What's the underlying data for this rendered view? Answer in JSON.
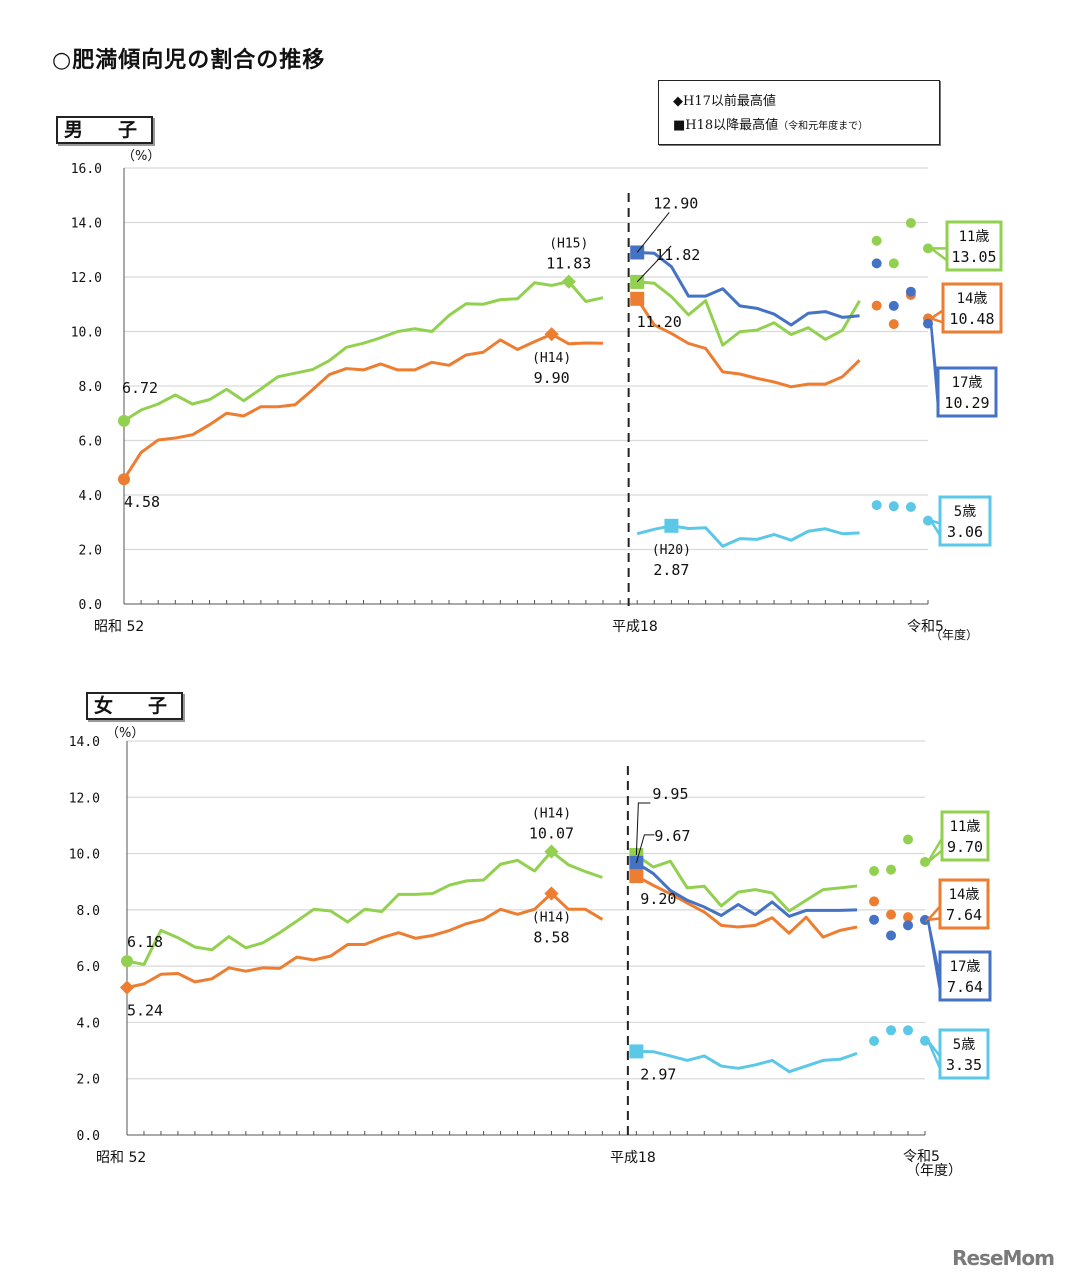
{
  "title": "○肥満傾向児の割合の推移",
  "legend": {
    "diamond": "◆H17以前最高値",
    "square": "■H18以降最高値",
    "square_note": "（令和元年度まで）"
  },
  "watermark": "ReseMom",
  "colors": {
    "11歳": "#92d050",
    "14歳": "#ed7d31",
    "17歳": "#4472c4",
    "5歳": "#5bc8e8"
  },
  "chart_data": [
    {
      "type": "line",
      "title": "男　子",
      "ylabel": "（%）",
      "xlabel": "（年度）",
      "ylim": [
        0,
        16
      ],
      "y_ticks": [
        "0.0",
        "2.0",
        "4.0",
        "6.0",
        "8.0",
        "10.0",
        "12.0",
        "14.0",
        "16.0"
      ],
      "x_range": [
        1977,
        2023
      ],
      "x_labels": [
        {
          "year": 1977,
          "label": "昭和 52"
        },
        {
          "year": 2006,
          "label": "平成18"
        },
        {
          "year": 2023,
          "label": "令和5"
        }
      ],
      "grid": true,
      "series": [
        {
          "name": "11歳",
          "color": "#92d050",
          "segments": [
            {
              "start": 1977,
              "values": [
                6.72,
                7.12,
                7.34,
                7.67,
                7.34,
                7.5,
                7.88,
                7.46,
                7.89,
                8.34,
                8.47,
                8.6,
                8.93,
                9.42,
                9.57,
                9.77,
                10.0,
                10.1,
                10.0,
                10.59,
                11.02,
                11.0,
                11.17,
                11.2,
                11.79,
                11.69,
                11.83,
                11.1,
                11.24
              ]
            },
            {
              "start": 2006,
              "values": [
                11.82,
                11.77,
                11.28,
                10.61,
                11.13,
                9.5,
                9.99,
                10.05,
                10.32,
                9.89,
                10.14,
                9.71,
                10.05,
                11.13
              ]
            }
          ],
          "points": [
            {
              "year": 2020,
              "value": 13.33
            },
            {
              "year": 2021,
              "value": 12.5
            },
            {
              "year": 2022,
              "value": 13.98
            },
            {
              "year": 2023,
              "value": 13.05
            }
          ]
        },
        {
          "name": "14歳",
          "color": "#ed7d31",
          "segments": [
            {
              "start": 1977,
              "values": [
                4.58,
                5.56,
                6.02,
                6.09,
                6.21,
                6.58,
                7.0,
                6.9,
                7.24,
                7.24,
                7.31,
                7.85,
                8.42,
                8.64,
                8.59,
                8.81,
                8.59,
                8.59,
                8.87,
                8.76,
                9.14,
                9.24,
                9.69,
                9.34,
                9.63,
                9.9,
                9.55,
                9.58,
                9.57
              ]
            },
            {
              "start": 2006,
              "values": [
                11.2,
                10.24,
                9.93,
                9.56,
                9.38,
                8.52,
                8.44,
                8.28,
                8.15,
                7.97,
                8.07,
                8.07,
                8.34,
                8.95
              ]
            }
          ],
          "points": [
            {
              "year": 2020,
              "value": 10.95
            },
            {
              "year": 2021,
              "value": 10.27
            },
            {
              "year": 2022,
              "value": 11.34
            },
            {
              "year": 2023,
              "value": 10.48
            }
          ]
        },
        {
          "name": "17歳",
          "color": "#4472c4",
          "segments": [
            {
              "start": 2006,
              "values": [
                12.9,
                12.87,
                12.38,
                11.3,
                11.3,
                11.57,
                10.94,
                10.85,
                10.64,
                10.24,
                10.67,
                10.73,
                10.52,
                10.58
              ]
            }
          ],
          "points": [
            {
              "year": 2020,
              "value": 12.5
            },
            {
              "year": 2021,
              "value": 10.94
            },
            {
              "year": 2022,
              "value": 11.46
            },
            {
              "year": 2023,
              "value": 10.29
            }
          ]
        },
        {
          "name": "5歳",
          "color": "#5bc8e8",
          "segments": [
            {
              "start": 2006,
              "values": [
                2.58,
                2.74,
                2.87,
                2.77,
                2.8,
                2.12,
                2.4,
                2.37,
                2.55,
                2.34,
                2.67,
                2.76,
                2.58,
                2.61
              ]
            }
          ],
          "points": [
            {
              "year": 2020,
              "value": 3.63
            },
            {
              "year": 2021,
              "value": 3.59
            },
            {
              "year": 2022,
              "value": 3.56
            },
            {
              "year": 2023,
              "value": 3.06
            }
          ]
        }
      ],
      "annotations": [
        {
          "series": "11歳",
          "year": 1977,
          "value": 6.72,
          "marker": "circle",
          "text": [
            "6.72"
          ],
          "pos": "above"
        },
        {
          "series": "14歳",
          "year": 1977,
          "value": 4.58,
          "marker": "circle",
          "text": [
            "4.58"
          ],
          "pos": "below"
        },
        {
          "series": "11歳",
          "year": 2003,
          "value": 11.83,
          "marker": "diamond",
          "text": [
            "(H15)",
            "11.83"
          ],
          "pos": "above"
        },
        {
          "series": "14歳",
          "year": 2002,
          "value": 9.9,
          "marker": "diamond",
          "text": [
            "(H14)",
            "9.90"
          ],
          "pos": "below"
        },
        {
          "series": "17歳",
          "year": 2006,
          "value": 12.9,
          "marker": "square",
          "text": [
            "12.90"
          ],
          "pos": "leader-high"
        },
        {
          "series": "11歳",
          "year": 2006,
          "value": 11.82,
          "marker": "square",
          "text": [
            "11.82"
          ],
          "pos": "leader-low"
        },
        {
          "series": "14歳",
          "year": 2006,
          "value": 11.2,
          "marker": "square",
          "text": [
            "11.20"
          ],
          "pos": "below"
        },
        {
          "series": "5歳",
          "year": 2008,
          "value": 2.87,
          "marker": "square",
          "text": [
            "(H20)",
            "2.87"
          ],
          "pos": "below"
        }
      ],
      "callouts": [
        {
          "series": "11歳",
          "age": "11歳",
          "value": "13.05"
        },
        {
          "series": "14歳",
          "age": "14歳",
          "value": "10.48"
        },
        {
          "series": "17歳",
          "age": "17歳",
          "value": "10.29"
        },
        {
          "series": "5歳",
          "age": "5歳",
          "value": "3.06"
        }
      ]
    },
    {
      "type": "line",
      "title": "女　子",
      "ylabel": "（%）",
      "xlabel": "（年度）",
      "ylim": [
        0,
        14
      ],
      "y_ticks": [
        "0.0",
        "2.0",
        "4.0",
        "6.0",
        "8.0",
        "10.0",
        "12.0",
        "14.0"
      ],
      "x_range": [
        1977,
        2023
      ],
      "x_labels": [
        {
          "year": 1977,
          "label": "昭和 52"
        },
        {
          "year": 2006,
          "label": "平成18"
        },
        {
          "year": 2023,
          "label": "令和5"
        }
      ],
      "grid": true,
      "series": [
        {
          "name": "11歳",
          "color": "#92d050",
          "segments": [
            {
              "start": 1977,
              "values": [
                6.18,
                6.06,
                7.27,
                7.01,
                6.68,
                6.58,
                7.05,
                6.65,
                6.83,
                7.19,
                7.6,
                8.02,
                7.96,
                7.57,
                8.02,
                7.94,
                8.55,
                8.55,
                8.58,
                8.88,
                9.03,
                9.06,
                9.62,
                9.76,
                9.38,
                10.07,
                9.6,
                9.36,
                9.15
              ]
            },
            {
              "start": 2006,
              "values": [
                9.95,
                9.52,
                9.73,
                8.78,
                8.84,
                8.14,
                8.63,
                8.72,
                8.6,
                7.96,
                8.34,
                8.72,
                8.78,
                8.85
              ]
            }
          ],
          "points": [
            {
              "year": 2020,
              "value": 9.38
            },
            {
              "year": 2021,
              "value": 9.43
            },
            {
              "year": 2022,
              "value": 10.5
            },
            {
              "year": 2023,
              "value": 9.7
            }
          ]
        },
        {
          "name": "14歳",
          "color": "#ed7d31",
          "segments": [
            {
              "start": 1977,
              "values": [
                5.24,
                5.37,
                5.71,
                5.74,
                5.44,
                5.55,
                5.94,
                5.82,
                5.94,
                5.92,
                6.32,
                6.22,
                6.36,
                6.77,
                6.77,
                7.01,
                7.19,
                6.99,
                7.09,
                7.27,
                7.51,
                7.66,
                8.02,
                7.84,
                8.02,
                8.58,
                8.02,
                8.02,
                7.66
              ]
            },
            {
              "start": 2006,
              "values": [
                9.2,
                8.87,
                8.57,
                8.24,
                7.92,
                7.45,
                7.39,
                7.45,
                7.72,
                7.17,
                7.74,
                7.03,
                7.27,
                7.39
              ]
            }
          ],
          "points": [
            {
              "year": 2020,
              "value": 8.3
            },
            {
              "year": 2021,
              "value": 7.83
            },
            {
              "year": 2022,
              "value": 7.74
            },
            {
              "year": 2023,
              "value": 7.64
            }
          ]
        },
        {
          "name": "17歳",
          "color": "#4472c4",
          "segments": [
            {
              "start": 2006,
              "values": [
                9.67,
                9.29,
                8.69,
                8.34,
                8.1,
                7.8,
                8.19,
                7.83,
                8.28,
                7.77,
                7.98,
                7.98,
                7.98,
                8.0
              ]
            }
          ],
          "points": [
            {
              "year": 2020,
              "value": 7.65
            },
            {
              "year": 2021,
              "value": 7.09
            },
            {
              "year": 2022,
              "value": 7.45
            },
            {
              "year": 2023,
              "value": 7.64
            }
          ]
        },
        {
          "name": "5歳",
          "color": "#5bc8e8",
          "segments": [
            {
              "start": 2006,
              "values": [
                2.97,
                2.96,
                2.81,
                2.65,
                2.81,
                2.45,
                2.37,
                2.49,
                2.65,
                2.25,
                2.45,
                2.65,
                2.69,
                2.9
              ]
            }
          ],
          "points": [
            {
              "year": 2020,
              "value": 3.34
            },
            {
              "year": 2021,
              "value": 3.72
            },
            {
              "year": 2022,
              "value": 3.72
            },
            {
              "year": 2023,
              "value": 3.35
            }
          ]
        }
      ],
      "annotations": [
        {
          "series": "11歳",
          "year": 1977,
          "value": 6.18,
          "marker": "circle",
          "text": [
            "6.18"
          ],
          "pos": "above"
        },
        {
          "series": "14歳",
          "year": 1977,
          "value": 5.24,
          "marker": "diamond",
          "text": [
            "5.24"
          ],
          "pos": "below"
        },
        {
          "series": "11歳",
          "year": 2002,
          "value": 10.07,
          "marker": "diamond",
          "text": [
            "(H14)",
            "10.07"
          ],
          "pos": "above"
        },
        {
          "series": "14歳",
          "year": 2002,
          "value": 8.58,
          "marker": "diamond",
          "text": [
            "(H14)",
            "8.58"
          ],
          "pos": "below"
        },
        {
          "series": "11歳",
          "year": 2006,
          "value": 9.95,
          "marker": "square",
          "text": [
            "9.95"
          ],
          "pos": "leader-high"
        },
        {
          "series": "17歳",
          "year": 2006,
          "value": 9.67,
          "marker": "square",
          "text": [
            "9.67"
          ],
          "pos": "leader-low"
        },
        {
          "series": "14歳",
          "year": 2006,
          "value": 9.2,
          "marker": "square",
          "text": [
            "9.20"
          ],
          "pos": "below"
        },
        {
          "series": "5歳",
          "year": 2006,
          "value": 2.97,
          "marker": "square",
          "text": [
            "2.97"
          ],
          "pos": "below"
        }
      ],
      "callouts": [
        {
          "series": "11歳",
          "age": "11歳",
          "value": "9.70"
        },
        {
          "series": "14歳",
          "age": "14歳",
          "value": "7.64"
        },
        {
          "series": "17歳",
          "age": "17歳",
          "value": "7.64"
        },
        {
          "series": "5歳",
          "age": "5歳",
          "value": "3.35"
        }
      ]
    }
  ]
}
